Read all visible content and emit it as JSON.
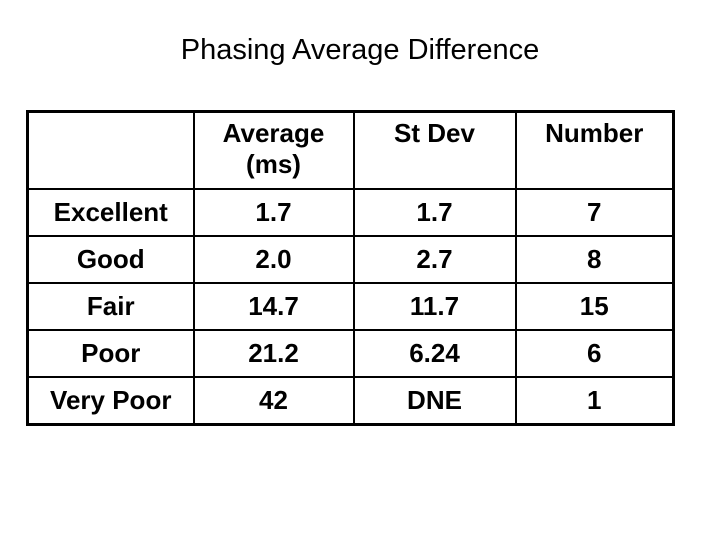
{
  "slide_title": "Phasing Average Difference",
  "colors": {
    "background": "#ffffff",
    "text": "#000000",
    "table_border": "#000000"
  },
  "table": {
    "headers": [
      "",
      "Average (ms)",
      "St Dev",
      "Number"
    ],
    "rows": [
      {
        "label": "Excellent",
        "values": [
          "1.7",
          "1.7",
          "7"
        ]
      },
      {
        "label": "Good",
        "values": [
          "2.0",
          "2.7",
          "8"
        ]
      },
      {
        "label": "Fair",
        "values": [
          "14.7",
          "11.7",
          "15"
        ]
      },
      {
        "label": "Poor",
        "values": [
          "21.2",
          "6.24",
          "6"
        ]
      },
      {
        "label": "Very Poor",
        "values": [
          "42",
          "DNE",
          "1"
        ]
      }
    ]
  }
}
